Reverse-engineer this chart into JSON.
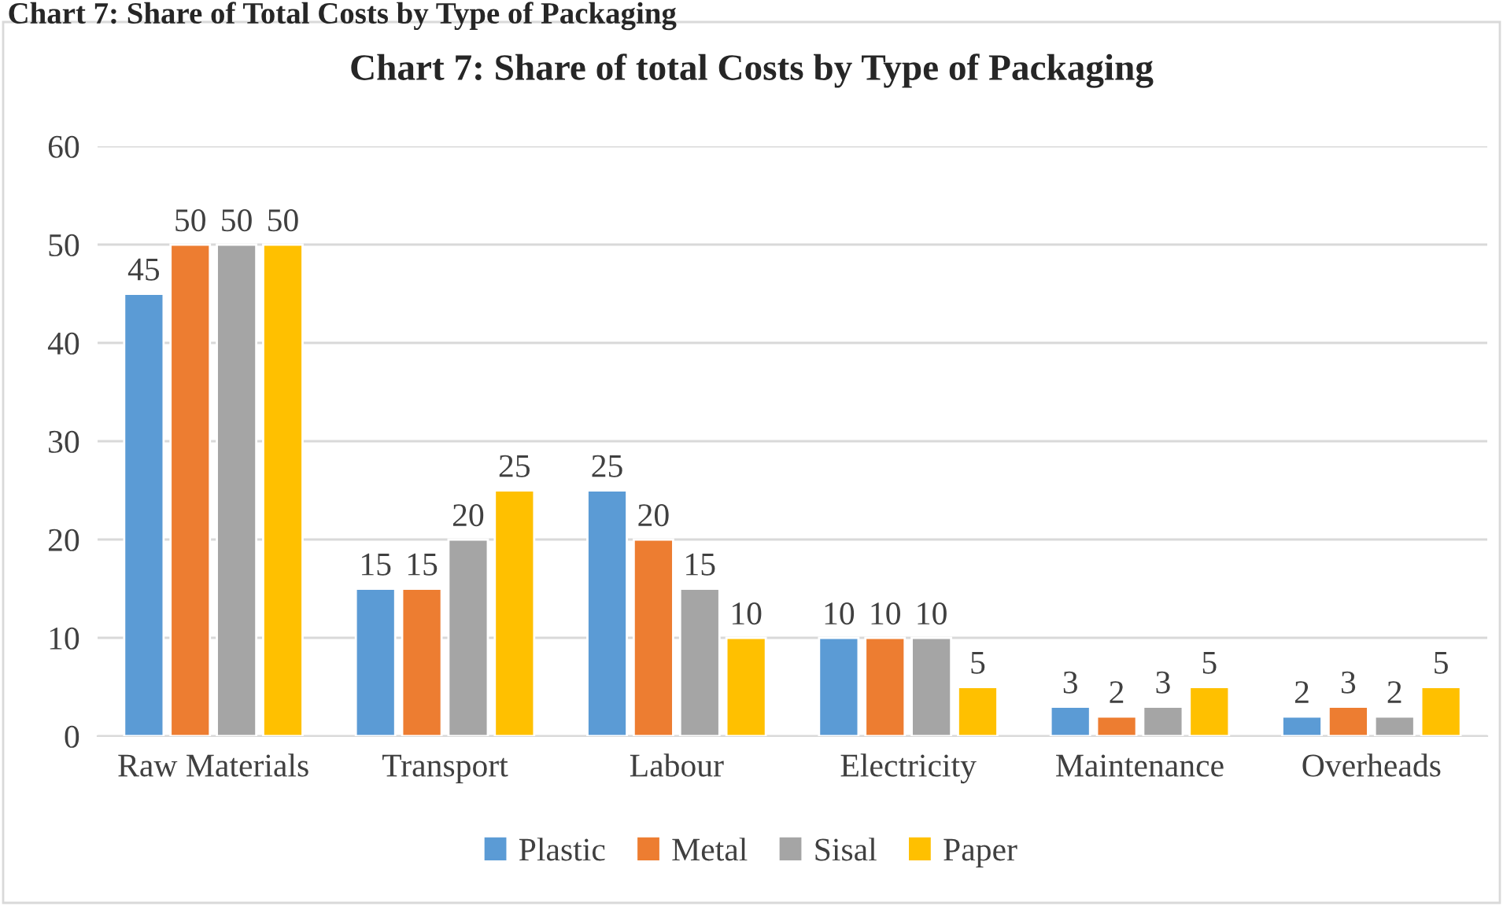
{
  "chart_data": {
    "type": "bar",
    "title": "Chart 7: Share of total Costs by Type of Packaging",
    "annotations": [
      "Chart 7: Share of Total Costs by Type of Packaging"
    ],
    "categories": [
      "Raw Materials",
      "Transport",
      "Labour",
      "Electricity",
      "Maintenance",
      "Overheads"
    ],
    "series": [
      {
        "name": "Plastic",
        "color": "#5b9bd5",
        "values": [
          45,
          15,
          25,
          10,
          3,
          2
        ]
      },
      {
        "name": "Metal",
        "color": "#ed7d31",
        "values": [
          50,
          15,
          20,
          10,
          2,
          3
        ]
      },
      {
        "name": "Sisal",
        "color": "#a5a5a5",
        "values": [
          50,
          20,
          15,
          10,
          3,
          2
        ]
      },
      {
        "name": "Paper",
        "color": "#ffc000",
        "values": [
          50,
          25,
          10,
          5,
          5,
          5
        ]
      }
    ],
    "ylim": [
      0,
      60
    ],
    "yticks": [
      0,
      10,
      20,
      30,
      40,
      50,
      60
    ],
    "grid": "y",
    "legend": "bottom",
    "data_labels": true
  }
}
